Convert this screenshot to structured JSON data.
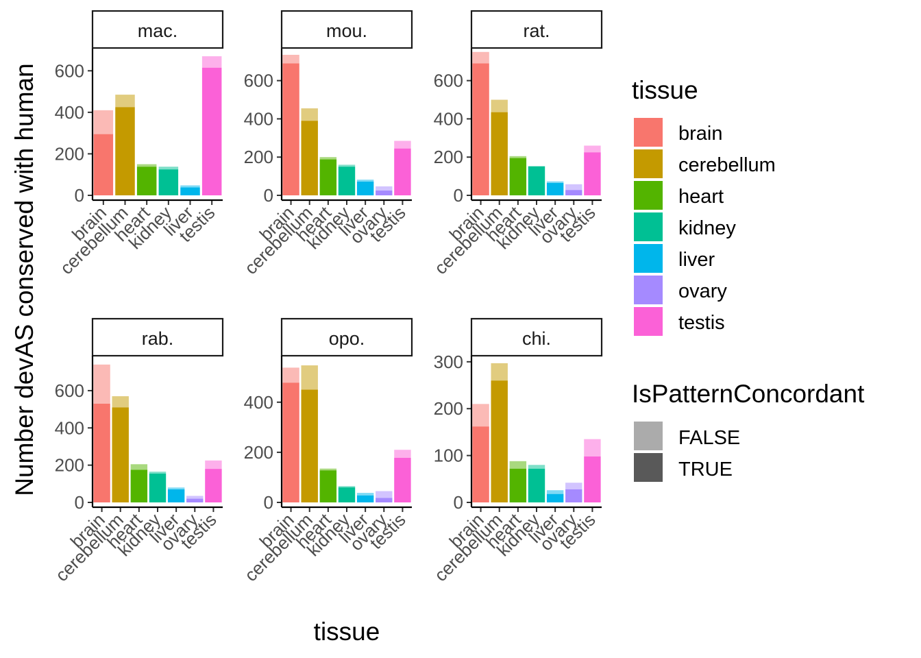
{
  "chart_data": {
    "type": "bar",
    "xlabel": "tissue",
    "ylabel": "Number devAS conserved with human",
    "facets": [
      {
        "name": "mac.",
        "ylim": [
          0,
          700
        ],
        "yticks": [
          0,
          200,
          400,
          600
        ],
        "categories": [
          "brain",
          "cerebellum",
          "heart",
          "kidney",
          "liver",
          "testis"
        ],
        "series": [
          {
            "name": "TRUE",
            "values": [
              295,
              425,
              138,
              125,
              38,
              615
            ]
          },
          {
            "name": "FALSE",
            "values": [
              115,
              60,
              12,
              13,
              10,
              55
            ]
          }
        ]
      },
      {
        "name": "mou.",
        "ylim": [
          0,
          760
        ],
        "yticks": [
          0,
          200,
          400,
          600
        ],
        "categories": [
          "brain",
          "cerebellum",
          "heart",
          "kidney",
          "liver",
          "ovary",
          "testis"
        ],
        "series": [
          {
            "name": "TRUE",
            "values": [
              690,
              390,
              188,
              150,
              72,
              25,
              245
            ]
          },
          {
            "name": "FALSE",
            "values": [
              45,
              65,
              12,
              10,
              10,
              22,
              40
            ]
          }
        ]
      },
      {
        "name": "rat.",
        "ylim": [
          0,
          760
        ],
        "yticks": [
          0,
          200,
          400,
          600
        ],
        "categories": [
          "brain",
          "cerebellum",
          "heart",
          "kidney",
          "liver",
          "ovary",
          "testis"
        ],
        "series": [
          {
            "name": "TRUE",
            "values": [
              690,
              435,
              195,
              152,
              65,
              28,
              225
            ]
          },
          {
            "name": "FALSE",
            "values": [
              60,
              65,
              10,
              0,
              8,
              30,
              35
            ]
          }
        ]
      },
      {
        "name": "rab.",
        "ylim": [
          0,
          780
        ],
        "yticks": [
          0,
          200,
          400,
          600
        ],
        "categories": [
          "brain",
          "cerebellum",
          "heart",
          "kidney",
          "liver",
          "ovary",
          "testis"
        ],
        "series": [
          {
            "name": "TRUE",
            "values": [
              530,
              510,
              175,
              155,
              70,
              20,
              180
            ]
          },
          {
            "name": "FALSE",
            "values": [
              210,
              60,
              30,
              10,
              10,
              15,
              45
            ]
          }
        ]
      },
      {
        "name": "opo.",
        "ylim": [
          0,
          580
        ],
        "yticks": [
          0,
          200,
          400
        ],
        "categories": [
          "brain",
          "cerebellum",
          "heart",
          "kidney",
          "liver",
          "ovary",
          "testis"
        ],
        "series": [
          {
            "name": "TRUE",
            "values": [
              478,
              450,
              128,
              60,
              28,
              18,
              178
            ]
          },
          {
            "name": "FALSE",
            "values": [
              60,
              97,
              7,
              5,
              10,
              27,
              32
            ]
          }
        ]
      },
      {
        "name": "chi.",
        "ylim": [
          0,
          310
        ],
        "yticks": [
          0,
          100,
          200,
          300
        ],
        "categories": [
          "brain",
          "cerebellum",
          "heart",
          "kidney",
          "liver",
          "ovary",
          "testis"
        ],
        "series": [
          {
            "name": "TRUE",
            "values": [
              162,
              260,
              72,
              72,
              18,
              28,
              98
            ]
          },
          {
            "name": "FALSE",
            "values": [
              48,
              37,
              16,
              8,
              8,
              14,
              37
            ]
          }
        ]
      }
    ],
    "legend": {
      "tissue": {
        "title": "tissue",
        "items": [
          {
            "label": "brain",
            "color": "#F8766D"
          },
          {
            "label": "cerebellum",
            "color": "#C49A00"
          },
          {
            "label": "heart",
            "color": "#53B400"
          },
          {
            "label": "kidney",
            "color": "#00C094"
          },
          {
            "label": "liver",
            "color": "#00B6EB"
          },
          {
            "label": "ovary",
            "color": "#A58AFF"
          },
          {
            "label": "testis",
            "color": "#FB61D7"
          }
        ]
      },
      "concordant": {
        "title": "IsPatternConcordant",
        "items": [
          {
            "label": "FALSE",
            "color": "#ABABAB"
          },
          {
            "label": "TRUE",
            "color": "#595959"
          }
        ]
      }
    }
  }
}
